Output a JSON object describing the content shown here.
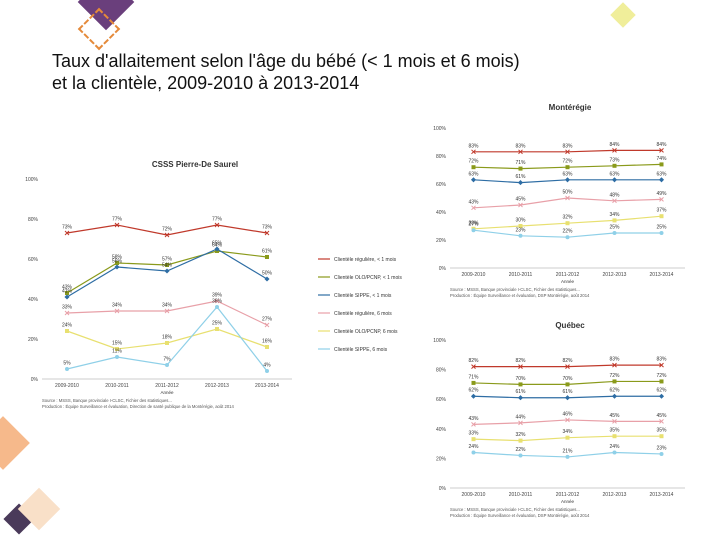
{
  "slide": {
    "title_line1": "Taux d'allaitement selon l'âge du bébé (< 1 mois et 6 mois)",
    "title_line2": "et la clientèle, 2009-2010 à 2013-2014"
  },
  "chart_data": [
    {
      "type": "line",
      "title": "CSSS Pierre-De Saurel",
      "xlabel": "Année",
      "ylabel": "",
      "ylim": [
        0,
        100
      ],
      "yticks": [
        "0%",
        "20%",
        "40%",
        "60%",
        "80%",
        "100%"
      ],
      "categories": [
        "2009-2010",
        "2010-2011",
        "2011-2012",
        "2012-2013",
        "2013-2014"
      ],
      "series": [
        {
          "name": "Clientèle régulière, < 1 mois",
          "color": "#c0392b",
          "values": [
            73,
            77,
            72,
            77,
            73
          ],
          "labels": [
            "73%",
            "77%",
            "72%",
            "77%",
            "73%"
          ]
        },
        {
          "name": "Clientèle OLO/PCNP, < 1 mois",
          "color": "#8a9a1b",
          "values": [
            43,
            58,
            57,
            64,
            61
          ],
          "labels": [
            "43%",
            "58%",
            "57%",
            "64%",
            "61%"
          ]
        },
        {
          "name": "Clientèle SIPPE, < 1 mois",
          "color": "#2e6da4",
          "values": [
            41,
            56,
            54,
            65,
            50
          ],
          "labels": [
            "41%",
            "56%",
            "54%",
            "65%",
            "50%"
          ]
        },
        {
          "name": "Clientèle régulière, 6 mois",
          "color": "#e8a0a8",
          "values": [
            33,
            34,
            34,
            39,
            27
          ],
          "labels": [
            "33%",
            "34%",
            "34%",
            "39%",
            "27%"
          ]
        },
        {
          "name": "Clientèle OLO/PCNP, 6 mois",
          "color": "#e8e070",
          "values": [
            24,
            15,
            18,
            25,
            16
          ],
          "labels": [
            "24%",
            "15%",
            "18%",
            "25%",
            "16%"
          ]
        },
        {
          "name": "Clientèle SIPPE, 6 mois",
          "color": "#8fd0e8",
          "values": [
            5,
            11,
            7,
            36,
            4
          ],
          "labels": [
            "5%",
            "11%",
            "7%",
            "36%",
            "4%"
          ]
        }
      ],
      "source": [
        "Source : MSSS, Banque provinciale I-CLSC, Fichier des statistiques...",
        "Production : Équipe Surveillance et évaluation, Direction de santé publique de la Montérégie, août 2014"
      ]
    },
    {
      "type": "line",
      "title": "Montérégie",
      "xlabel": "Année",
      "ylabel": "",
      "ylim": [
        0,
        100
      ],
      "yticks": [
        "0%",
        "20%",
        "40%",
        "60%",
        "80%",
        "100%"
      ],
      "categories": [
        "2009-2010",
        "2010-2011",
        "2011-2012",
        "2012-2013",
        "2013-2014"
      ],
      "series": [
        {
          "name": "Clientèle régulière, < 1 mois",
          "color": "#c0392b",
          "values": [
            83,
            83,
            83,
            84,
            84
          ],
          "labels": [
            "83%",
            "83%",
            "83%",
            "84%",
            "84%"
          ]
        },
        {
          "name": "Clientèle OLO/PCNP, < 1 mois",
          "color": "#8a9a1b",
          "values": [
            72,
            71,
            72,
            73,
            74
          ],
          "labels": [
            "72%",
            "71%",
            "72%",
            "73%",
            "74%"
          ]
        },
        {
          "name": "Clientèle SIPPE, < 1 mois",
          "color": "#2e6da4",
          "values": [
            63,
            61,
            63,
            63,
            63
          ],
          "labels": [
            "63%",
            "61%",
            "63%",
            "63%",
            "63%"
          ]
        },
        {
          "name": "Clientèle régulière, 6 mois",
          "color": "#e8a0a8",
          "values": [
            43,
            45,
            50,
            48,
            49
          ],
          "labels": [
            "43%",
            "45%",
            "50%",
            "48%",
            "49%"
          ]
        },
        {
          "name": "Clientèle OLO/PCNP, 6 mois",
          "color": "#e8e070",
          "values": [
            28,
            30,
            32,
            34,
            37
          ],
          "labels": [
            "28%",
            "30%",
            "32%",
            "34%",
            "37%"
          ]
        },
        {
          "name": "Clientèle SIPPE, 6 mois",
          "color": "#8fd0e8",
          "values": [
            27,
            23,
            22,
            25,
            25
          ],
          "labels": [
            "27%",
            "23%",
            "22%",
            "25%",
            "25%"
          ]
        }
      ],
      "source": [
        "Source : MSSS, Banque provinciale I-CLSC, Fichier des statistiques...",
        "Production : Équipe Surveillance et évaluation, DSP Montérégie, août 2014"
      ]
    },
    {
      "type": "line",
      "title": "Québec",
      "xlabel": "Année",
      "ylabel": "",
      "ylim": [
        0,
        100
      ],
      "yticks": [
        "0%",
        "20%",
        "40%",
        "60%",
        "80%",
        "100%"
      ],
      "categories": [
        "2009-2010",
        "2010-2011",
        "2011-2012",
        "2012-2013",
        "2013-2014"
      ],
      "series": [
        {
          "name": "Clientèle régulière, < 1 mois",
          "color": "#c0392b",
          "values": [
            82,
            82,
            82,
            83,
            83
          ],
          "labels": [
            "82%",
            "82%",
            "82%",
            "83%",
            "83%"
          ]
        },
        {
          "name": "Clientèle OLO/PCNP, < 1 mois",
          "color": "#8a9a1b",
          "values": [
            71,
            70,
            70,
            72,
            72
          ],
          "labels": [
            "71%",
            "70%",
            "70%",
            "72%",
            "72%"
          ]
        },
        {
          "name": "Clientèle SIPPE, < 1 mois",
          "color": "#2e6da4",
          "values": [
            62,
            61,
            61,
            62,
            62
          ],
          "labels": [
            "62%",
            "61%",
            "61%",
            "62%",
            "62%"
          ]
        },
        {
          "name": "Clientèle régulière, 6 mois",
          "color": "#e8a0a8",
          "values": [
            43,
            44,
            46,
            45,
            45
          ],
          "labels": [
            "43%",
            "44%",
            "46%",
            "45%",
            "45%"
          ]
        },
        {
          "name": "Clientèle OLO/PCNP, 6 mois",
          "color": "#e8e070",
          "values": [
            33,
            32,
            34,
            35,
            35
          ],
          "labels": [
            "33%",
            "32%",
            "34%",
            "35%",
            "35%"
          ]
        },
        {
          "name": "Clientèle SIPPE, 6 mois",
          "color": "#8fd0e8",
          "values": [
            24,
            22,
            21,
            24,
            23
          ],
          "labels": [
            "24%",
            "22%",
            "21%",
            "24%",
            "23%"
          ]
        }
      ],
      "source": [
        "Source : MSSS, Banque provinciale I-CLSC, Fichier des statistiques...",
        "Production : Équipe Surveillance et évaluation, DSP Montérégie, août 2014"
      ]
    }
  ]
}
